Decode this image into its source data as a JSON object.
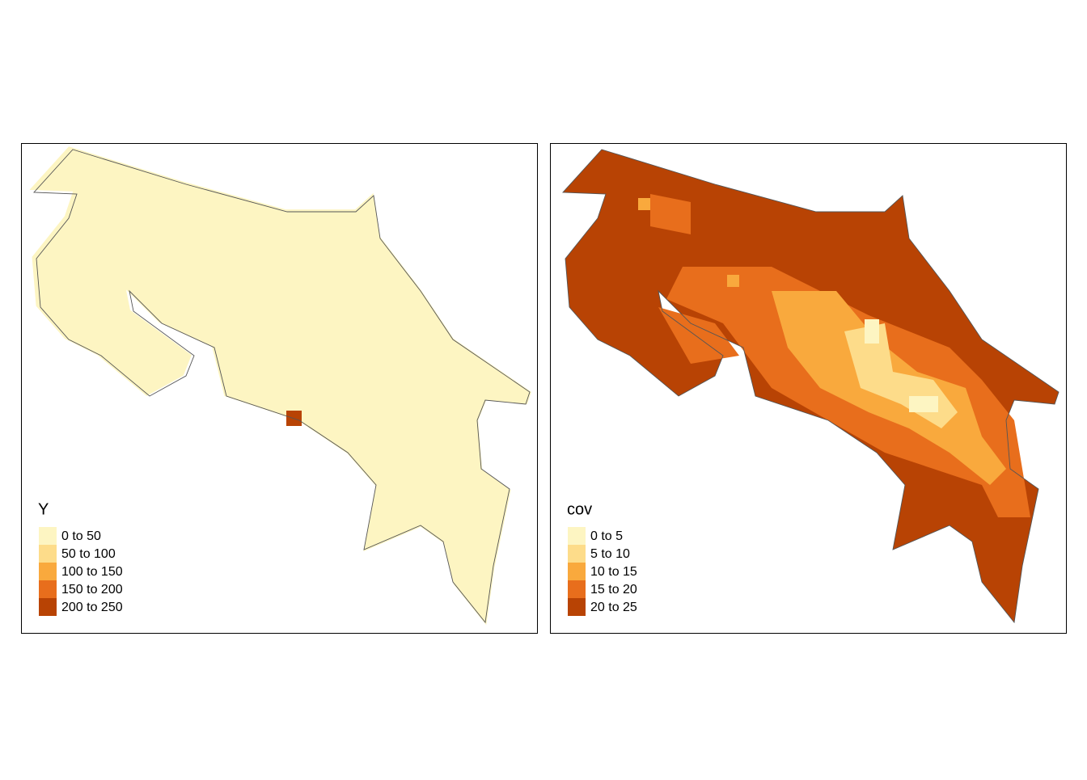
{
  "panels": [
    {
      "legend_title": "Y",
      "classes": [
        {
          "label": "0 to 50",
          "color": "#fdf5c2"
        },
        {
          "label": "50 to 100",
          "color": "#fddc8a"
        },
        {
          "label": "100 to 150",
          "color": "#f9a93d"
        },
        {
          "label": "150 to 200",
          "color": "#e86e1c"
        },
        {
          "label": "200 to 250",
          "color": "#b84304"
        }
      ]
    },
    {
      "legend_title": "cov",
      "classes": [
        {
          "label": "0 to 5",
          "color": "#fdf5c2"
        },
        {
          "label": "5 to 10",
          "color": "#fddc8a"
        },
        {
          "label": "10 to 15",
          "color": "#f9a93d"
        },
        {
          "label": "15 to 20",
          "color": "#e86e1c"
        },
        {
          "label": "20 to 25",
          "color": "#b84304"
        }
      ]
    }
  ]
}
